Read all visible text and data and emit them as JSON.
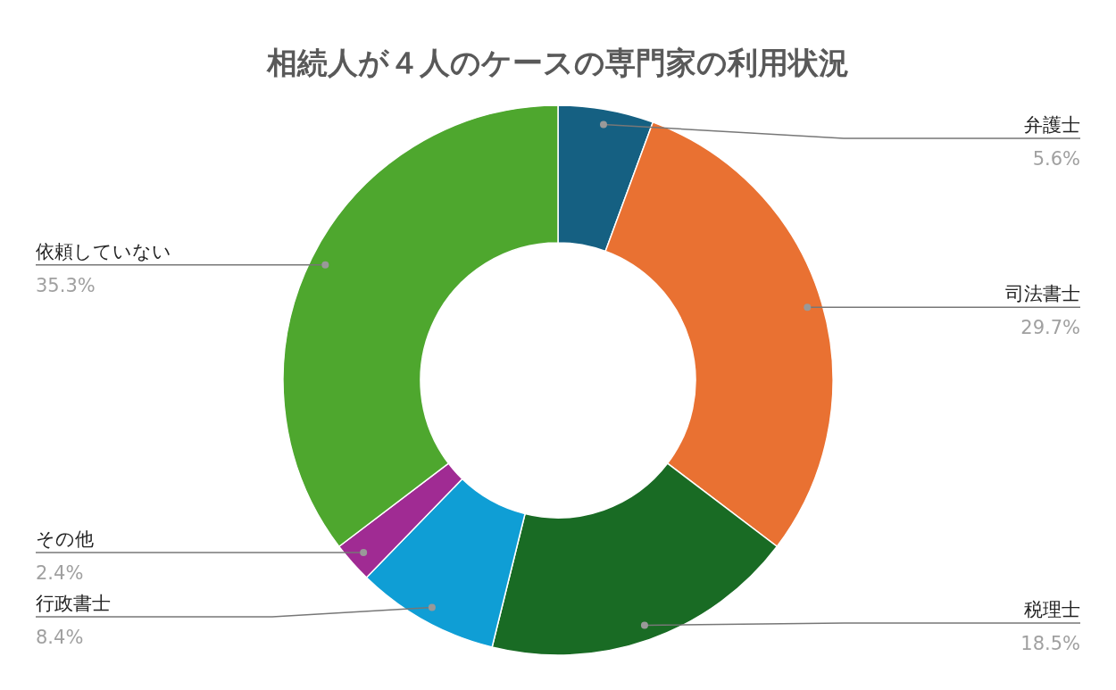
{
  "chart_data": {
    "type": "donut",
    "title": "相続人が４人のケースの専門家の利用状況",
    "categories": [
      "弁護士",
      "司法書士",
      "税理士",
      "行政書士",
      "その他",
      "依頼していない"
    ],
    "values": [
      5.6,
      29.7,
      18.5,
      8.4,
      2.4,
      35.3
    ],
    "colors": [
      "#156082",
      "#e97132",
      "#196b24",
      "#0f9ed5",
      "#a02b93",
      "#4ea72e"
    ],
    "value_labels": [
      "5.6%",
      "29.7%",
      "18.5%",
      "8.4%",
      "2.4%",
      "35.3%"
    ]
  }
}
